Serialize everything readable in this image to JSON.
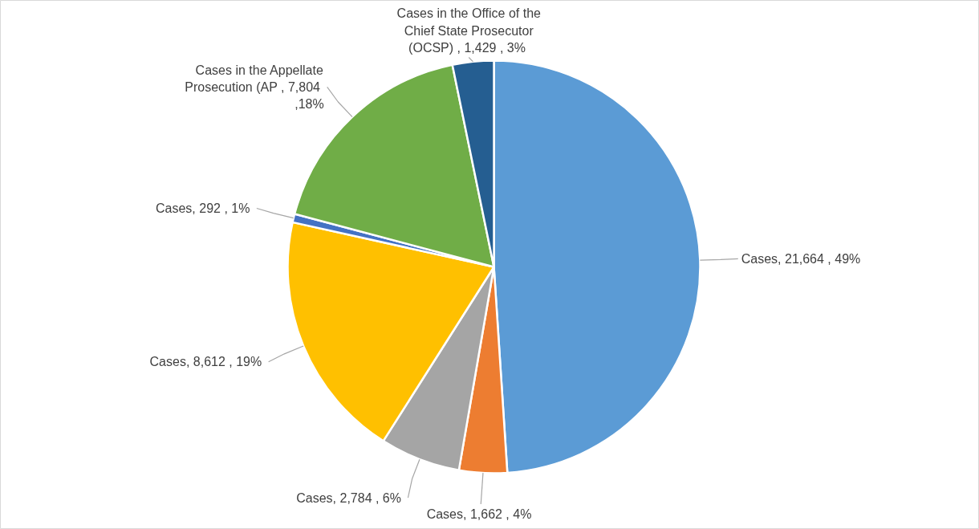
{
  "chart_data": {
    "type": "pie",
    "categories": [
      "Cases",
      "Cases",
      "Cases",
      "Cases",
      "Cases",
      "Cases in the Appellate Prosecution (AP",
      "Cases in the Office of the Chief State Prosecutor (OCSP)"
    ],
    "values": [
      21664,
      1662,
      2784,
      8612,
      292,
      7804,
      1429
    ],
    "colors": [
      "#5b9bd5",
      "#ed7d31",
      "#a5a5a5",
      "#ffc000",
      "#4472c4",
      "#70ad47",
      "#255e91"
    ],
    "value_labels": [
      ",  21,664 , 49%",
      ",  1,662 , 4%",
      ",  2,784 , 6%",
      ",  8,612 , 19%",
      ",  292 , 1%",
      " ,  7,804 ,18%",
      " ,  1,429 , 3%"
    ],
    "legend": false
  }
}
